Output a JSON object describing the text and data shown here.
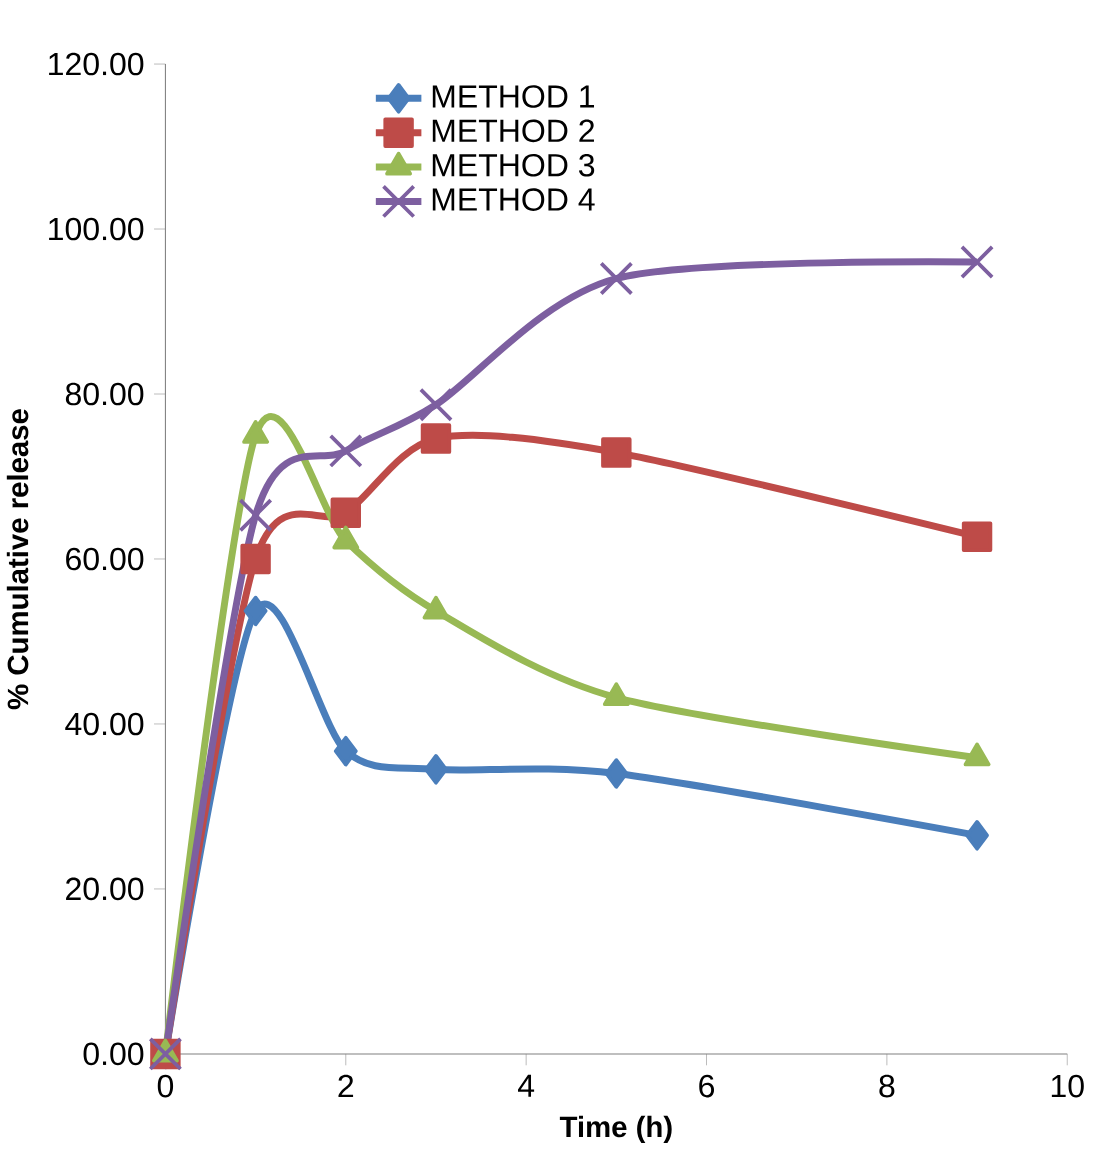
{
  "chart_data": {
    "type": "line",
    "xlabel": "Time (h)",
    "ylabel": "% Cumulative release",
    "xlim": [
      0,
      10
    ],
    "xticks": [
      0,
      2,
      4,
      6,
      8,
      10
    ],
    "ylim": [
      0,
      120
    ],
    "yticks": [
      {
        "value": 0,
        "label": "0.00"
      },
      {
        "value": 20,
        "label": "20.00"
      },
      {
        "value": 40,
        "label": "40.00"
      },
      {
        "value": 60,
        "label": "60.00"
      },
      {
        "value": 80,
        "label": "80.00"
      },
      {
        "value": 100,
        "label": "100.00"
      },
      {
        "value": 120,
        "label": "120.00"
      }
    ],
    "x": [
      0,
      1,
      2,
      3,
      5,
      9
    ],
    "legend": "top left",
    "grid": false,
    "line_style": "solid",
    "series": [
      {
        "name": "METHOD 1",
        "color": "#4a7ebb",
        "marker": "diamond",
        "values": [
          0,
          53.7,
          36.7,
          34.5,
          34.0,
          26.5
        ]
      },
      {
        "name": "METHOD 2",
        "color": "#be4b48",
        "marker": "square",
        "values": [
          0,
          60.0,
          65.6,
          74.6,
          72.9,
          62.7
        ]
      },
      {
        "name": "METHOD 3",
        "color": "#98b954",
        "marker": "triangle",
        "values": [
          0,
          75.0,
          62.2,
          53.7,
          43.2,
          35.9
        ]
      },
      {
        "name": "METHOD 4",
        "color": "#7d5fa0",
        "marker": "cross",
        "values": [
          0,
          65.3,
          73.1,
          78.7,
          94.0,
          96.0
        ]
      }
    ]
  }
}
